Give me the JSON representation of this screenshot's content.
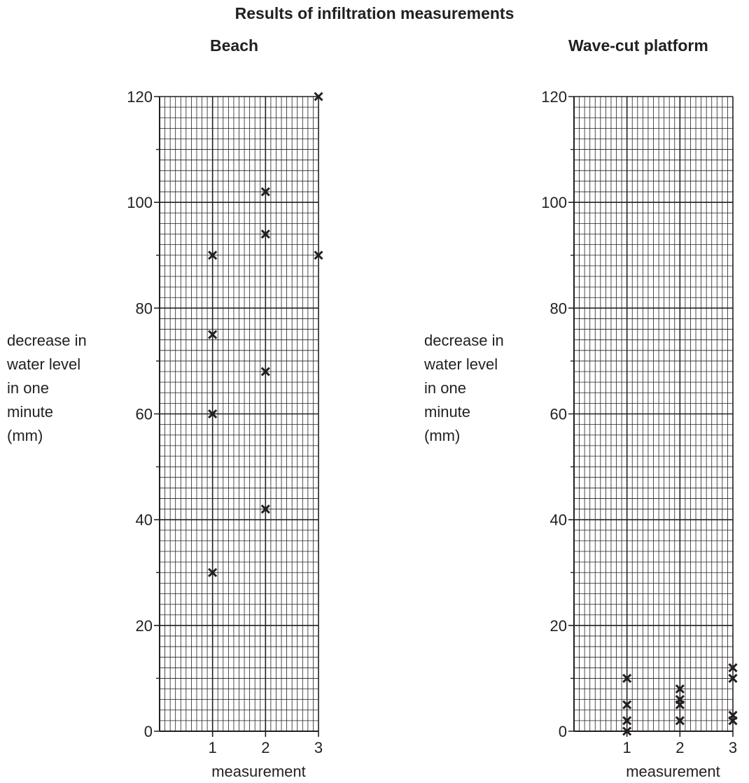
{
  "title": "Results of infiltration measurements",
  "ylabel_lines": [
    "decrease in",
    "water level",
    "in one",
    "minute",
    "(mm)"
  ],
  "chart_data": [
    {
      "type": "scatter",
      "title": "Beach",
      "xlabel": "measurement",
      "ylabel": "decrease in water level in one minute (mm)",
      "xlim": [
        0,
        3
      ],
      "ylim": [
        0,
        120
      ],
      "x_ticks": [
        "1",
        "2",
        "3"
      ],
      "y_ticks": [
        "0",
        "20",
        "40",
        "60",
        "80",
        "100",
        "120"
      ],
      "grid": true,
      "points": [
        {
          "x": 1,
          "y": 30
        },
        {
          "x": 1,
          "y": 60
        },
        {
          "x": 1,
          "y": 75
        },
        {
          "x": 1,
          "y": 90
        },
        {
          "x": 2,
          "y": 42
        },
        {
          "x": 2,
          "y": 68
        },
        {
          "x": 2,
          "y": 94
        },
        {
          "x": 2,
          "y": 102
        },
        {
          "x": 3,
          "y": 90
        },
        {
          "x": 3,
          "y": 120
        }
      ]
    },
    {
      "type": "scatter",
      "title": "Wave-cut platform",
      "xlabel": "measurement",
      "ylabel": "decrease in water level in one minute (mm)",
      "xlim": [
        0,
        3
      ],
      "ylim": [
        0,
        120
      ],
      "x_ticks": [
        "1",
        "2",
        "3"
      ],
      "y_ticks": [
        "0",
        "20",
        "40",
        "60",
        "80",
        "100",
        "120"
      ],
      "grid": true,
      "points": [
        {
          "x": 1,
          "y": 0
        },
        {
          "x": 1,
          "y": 2
        },
        {
          "x": 1,
          "y": 5
        },
        {
          "x": 1,
          "y": 10
        },
        {
          "x": 2,
          "y": 2
        },
        {
          "x": 2,
          "y": 5
        },
        {
          "x": 2,
          "y": 6
        },
        {
          "x": 2,
          "y": 8
        },
        {
          "x": 3,
          "y": 2
        },
        {
          "x": 3,
          "y": 3
        },
        {
          "x": 3,
          "y": 10
        },
        {
          "x": 3,
          "y": 12
        }
      ]
    }
  ]
}
